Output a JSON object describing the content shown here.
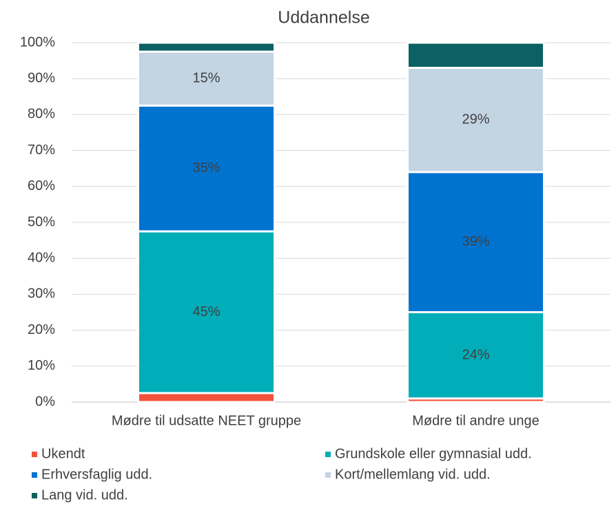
{
  "chart_data": {
    "type": "stacked_bar",
    "title": "Uddannelse",
    "categories": [
      "Mødre til udsatte NEET gruppe",
      "Mødre til andre unge"
    ],
    "series": [
      {
        "name": "Ukendt",
        "color": "#f4513c",
        "values": [
          2.5,
          1
        ],
        "value_labels": [
          null,
          null
        ]
      },
      {
        "name": "Grundskole eller gymnasial udd.",
        "color": "#00adb8",
        "values": [
          45,
          24
        ],
        "value_labels": [
          "45%",
          "24%"
        ]
      },
      {
        "name": "Erhversfaglig udd.",
        "color": "#0073cf",
        "values": [
          35,
          39
        ],
        "value_labels": [
          "35%",
          "39%"
        ]
      },
      {
        "name": "Kort/mellemlang vid. udd.",
        "color": "#c3d4e3",
        "values": [
          15,
          29
        ],
        "value_labels": [
          "15%",
          "29%"
        ]
      },
      {
        "name": "Lang vid. udd.",
        "color": "#0b6163",
        "values": [
          2.5,
          7
        ],
        "value_labels": [
          null,
          null
        ]
      }
    ],
    "ylim": [
      0,
      100
    ],
    "yticks": [
      {
        "value": 0,
        "label": "0%"
      },
      {
        "value": 10,
        "label": "10%"
      },
      {
        "value": 20,
        "label": "20%"
      },
      {
        "value": 30,
        "label": "30%"
      },
      {
        "value": 40,
        "label": "40%"
      },
      {
        "value": 50,
        "label": "50%"
      },
      {
        "value": 60,
        "label": "60%"
      },
      {
        "value": 70,
        "label": "70%"
      },
      {
        "value": 80,
        "label": "80%"
      },
      {
        "value": 90,
        "label": "90%"
      },
      {
        "value": 100,
        "label": "100%"
      }
    ],
    "grid": true,
    "legend": "bottom"
  }
}
